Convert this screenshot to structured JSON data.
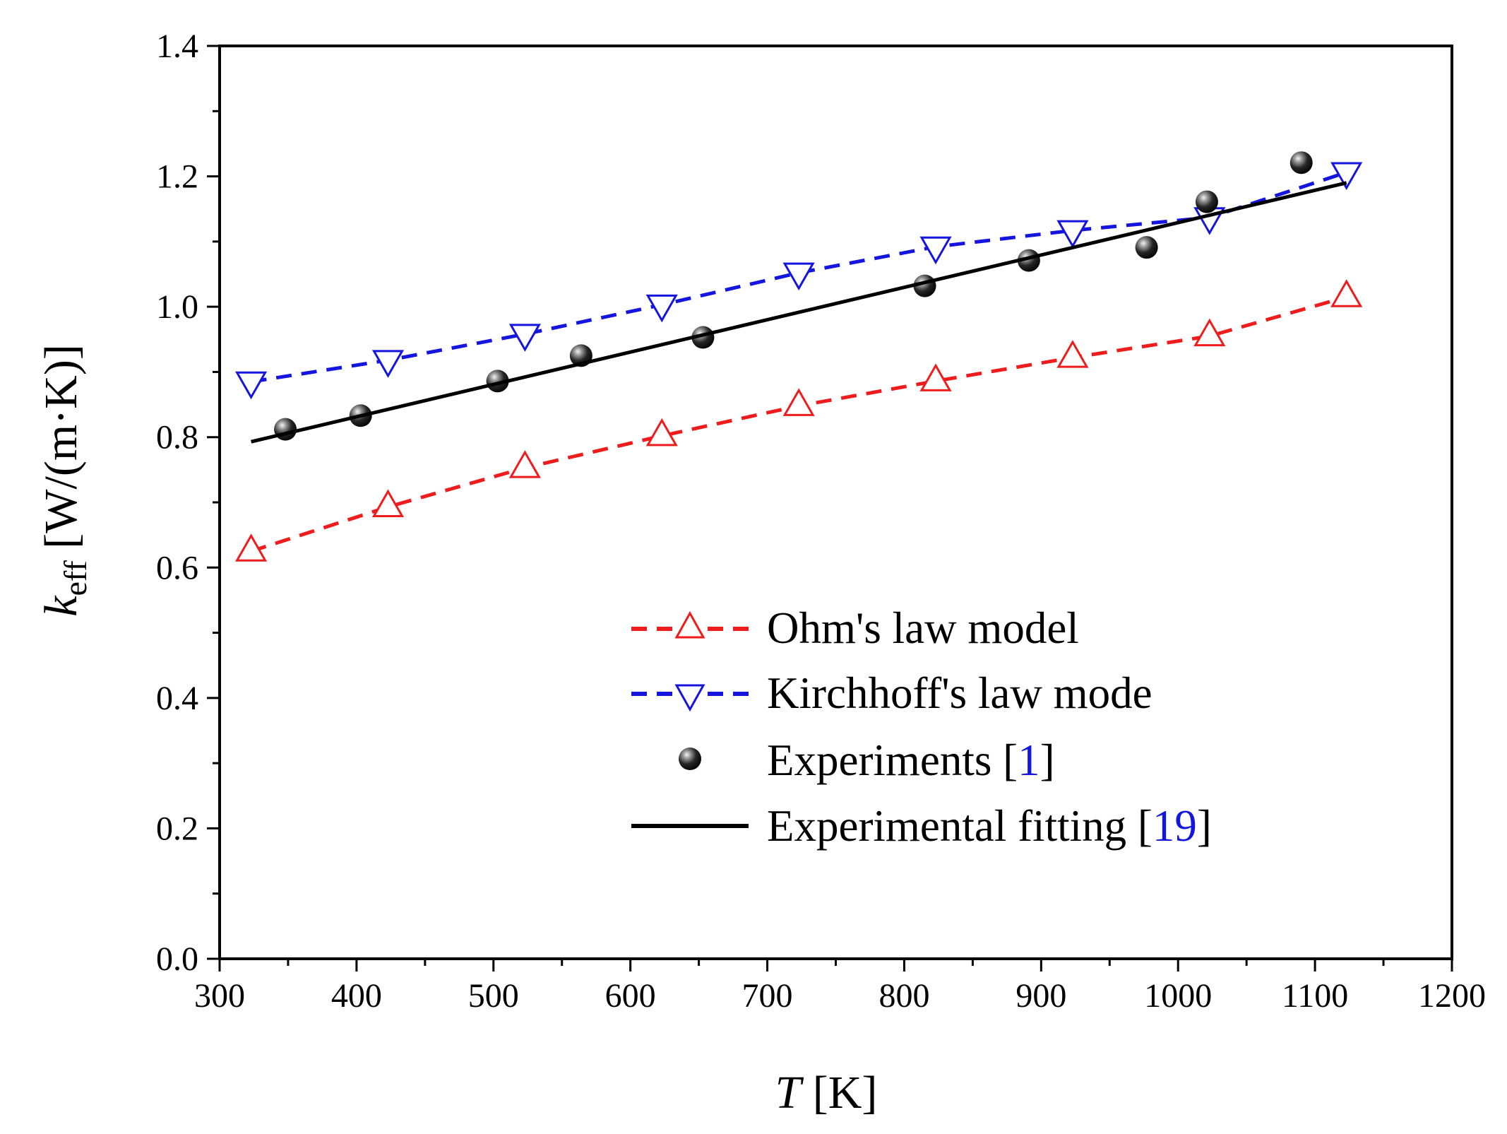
{
  "chart_data": {
    "type": "line",
    "title": "",
    "xlabel": {
      "symbol": "T",
      "unit": "[K]"
    },
    "ylabel": {
      "symbol": "k",
      "subscript": "eff",
      "unit": "[W/(m·K)]"
    },
    "xlim": [
      300,
      1200
    ],
    "ylim": [
      0.0,
      1.4
    ],
    "xticks": [
      "300",
      "400",
      "500",
      "600",
      "700",
      "800",
      "900",
      "1000",
      "1100",
      "1200"
    ],
    "yticks": [
      "0.0",
      "0.2",
      "0.4",
      "0.6",
      "0.8",
      "1.0",
      "1.2",
      "1.4"
    ],
    "legend_position": "lower-right",
    "series": [
      {
        "name": "Ohm's law model",
        "style": "dashed-up-triangle",
        "color": "#ee1c1c",
        "x": [
          323,
          423,
          523,
          623,
          723,
          823,
          923,
          1023,
          1123
        ],
        "y": [
          0.625,
          0.693,
          0.753,
          0.802,
          0.848,
          0.886,
          0.922,
          0.955,
          1.015
        ]
      },
      {
        "name": "Kirchhoff's law mode",
        "style": "dashed-down-triangle",
        "color": "#1515e0",
        "x": [
          323,
          423,
          523,
          623,
          723,
          823,
          923,
          1023,
          1123
        ],
        "y": [
          0.885,
          0.918,
          0.958,
          1.003,
          1.052,
          1.092,
          1.117,
          1.137,
          1.206
        ]
      },
      {
        "name": "Experiments [1]",
        "label_text": "Experiments [",
        "ref": "1",
        "label_close": "]",
        "style": "sphere-marker",
        "color": "#000000",
        "x": [
          348,
          403,
          503,
          564,
          653,
          815,
          891,
          977,
          1021,
          1090
        ],
        "y": [
          0.812,
          0.833,
          0.886,
          0.925,
          0.953,
          1.032,
          1.071,
          1.091,
          1.161,
          1.221
        ]
      },
      {
        "name": "Experimental fitting [19]",
        "label_text": "Experimental fitting [",
        "ref": "19",
        "label_close": "]",
        "style": "solid-line",
        "color": "#000000",
        "x": [
          323,
          1123
        ],
        "y": [
          0.793,
          1.19
        ]
      }
    ]
  }
}
